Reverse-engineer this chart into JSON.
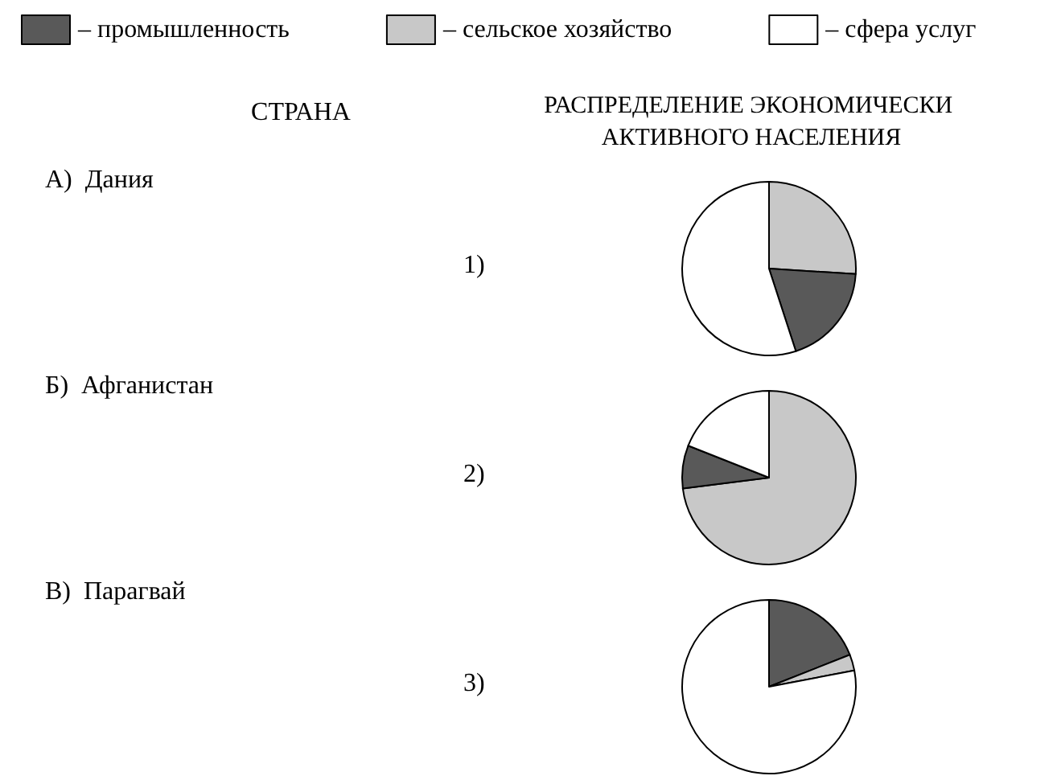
{
  "chart_data": [
    {
      "type": "other",
      "title": "СТРАНА",
      "annotations": [
        "А)  Дания",
        "Б)  Афганистан",
        "В)  Парагвай"
      ]
    },
    {
      "type": "pie",
      "title": "РАСПРЕДЕЛЕНИЕ ЭКОНОМИЧЕСКИ АКТИВНОГО НАСЕЛЕНИЯ",
      "annotations": [
        "1)"
      ],
      "categories": [
        "– сельское хозяйство",
        "– промышленность",
        "– сфера услуг"
      ],
      "values": [
        26,
        19,
        55
      ],
      "colors": [
        "#c8c8c8",
        "#595959",
        "#ffffff"
      ],
      "legend": "top"
    },
    {
      "type": "pie",
      "annotations": [
        "2)"
      ],
      "categories": [
        null,
        null,
        null
      ],
      "values": [
        73,
        8,
        19
      ],
      "colors": [
        "#c8c8c8",
        "#595959",
        "#ffffff"
      ]
    },
    {
      "type": "pie",
      "annotations": [
        "3)"
      ],
      "categories": [
        null,
        null,
        null
      ],
      "values": [
        19,
        3,
        78
      ],
      "colors": [
        "#595959",
        "#c8c8c8",
        "#ffffff"
      ]
    }
  ]
}
